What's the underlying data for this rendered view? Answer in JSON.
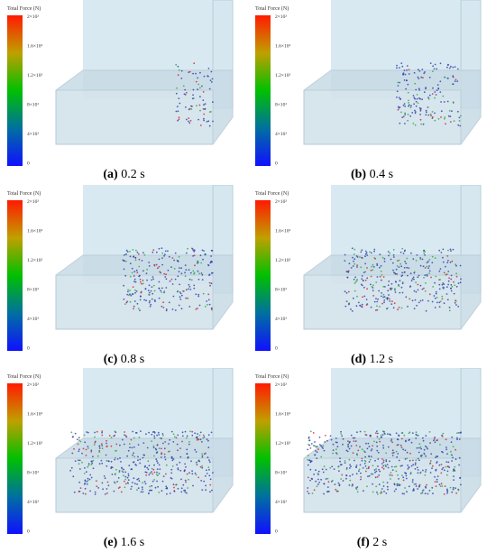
{
  "legend": {
    "title": "Total Force (N)",
    "ticks": [
      "2×10²",
      "1.6×10²",
      "1.2×10²",
      "8×10¹",
      "4×10¹",
      "0"
    ]
  },
  "panels": [
    {
      "label": "(a)",
      "time": "0.2 s"
    },
    {
      "label": "(b)",
      "time": "0.4 s"
    },
    {
      "label": "(c)",
      "time": "0.8 s"
    },
    {
      "label": "(d)",
      "time": "1.2 s"
    },
    {
      "label": "(e)",
      "time": "1.6 s"
    },
    {
      "label": "(f)",
      "time": "2 s"
    }
  ]
}
